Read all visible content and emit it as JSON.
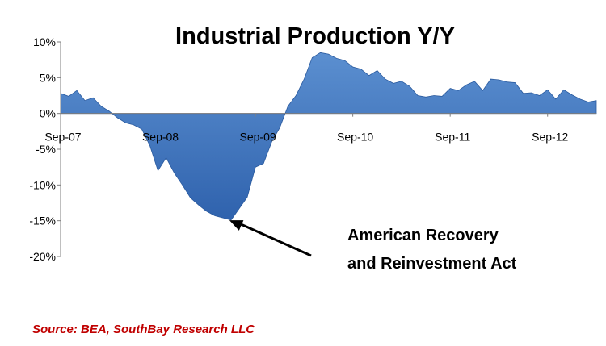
{
  "chart_data": {
    "type": "area",
    "title": "Industrial Production Y/Y",
    "xlabel": "",
    "ylabel": "",
    "ylim": [
      -20,
      10
    ],
    "y_ticks": [
      "10%",
      "5%",
      "0%",
      "-5%",
      "-10%",
      "-15%",
      "-20%"
    ],
    "y_tick_values": [
      10,
      5,
      0,
      -5,
      -10,
      -15,
      -20
    ],
    "x_ticks": [
      "Sep-07",
      "Sep-08",
      "Sep-09",
      "Sep-10",
      "Sep-11",
      "Sep-12"
    ],
    "x_tick_values": [
      "2007-09",
      "2008-09",
      "2009-09",
      "2010-09",
      "2011-09",
      "2012-09"
    ],
    "xlim": [
      "2007-09",
      "2013-03"
    ],
    "grid": false,
    "legend": "none",
    "color": "#4f81bd",
    "series": [
      {
        "x": [
          "2007-09",
          "2007-10",
          "2007-11",
          "2007-12",
          "2008-01",
          "2008-02",
          "2008-03",
          "2008-04",
          "2008-05",
          "2008-06",
          "2008-07",
          "2008-08",
          "2008-09",
          "2008-10",
          "2008-11",
          "2008-12",
          "2009-01",
          "2009-02",
          "2009-03",
          "2009-04",
          "2009-05",
          "2009-06",
          "2009-07",
          "2009-08",
          "2009-09",
          "2009-10",
          "2009-11",
          "2009-12",
          "2010-01",
          "2010-02",
          "2010-03",
          "2010-04",
          "2010-05",
          "2010-06",
          "2010-07",
          "2010-08",
          "2010-09",
          "2010-10",
          "2010-11",
          "2010-12",
          "2011-01",
          "2011-02",
          "2011-03",
          "2011-04",
          "2011-05",
          "2011-06",
          "2011-07",
          "2011-08",
          "2011-09",
          "2011-10",
          "2011-11",
          "2011-12",
          "2012-01",
          "2012-02",
          "2012-03",
          "2012-04",
          "2012-05",
          "2012-06",
          "2012-07",
          "2012-08",
          "2012-09",
          "2012-10",
          "2012-11",
          "2012-12",
          "2013-01",
          "2013-02",
          "2013-03"
        ],
        "values": [
          2.8,
          2.4,
          3.2,
          1.8,
          2.2,
          1.0,
          0.3,
          -0.6,
          -1.3,
          -1.6,
          -2.2,
          -4.5,
          -8.0,
          -6.2,
          -8.3,
          -10.0,
          -11.8,
          -12.8,
          -13.7,
          -14.3,
          -14.6,
          -14.9,
          -13.3,
          -11.7,
          -7.5,
          -7.0,
          -4.0,
          -2.0,
          1.0,
          2.5,
          4.8,
          7.8,
          8.5,
          8.3,
          7.7,
          7.4,
          6.5,
          6.2,
          5.3,
          6.0,
          4.8,
          4.2,
          4.5,
          3.8,
          2.5,
          2.3,
          2.5,
          2.4,
          3.5,
          3.2,
          4.0,
          4.5,
          3.2,
          4.8,
          4.7,
          4.4,
          4.3,
          2.8,
          2.9,
          2.5,
          3.3,
          2.0,
          3.3,
          2.6,
          2.0,
          1.6,
          1.8
        ]
      }
    ],
    "annotation": {
      "lines": [
        "American Recovery",
        "and Reinvestment Act"
      ],
      "points_to": {
        "x": "2009-05",
        "y": -14.6
      }
    }
  },
  "source": "Source: BEA, SouthBay Research LLC"
}
